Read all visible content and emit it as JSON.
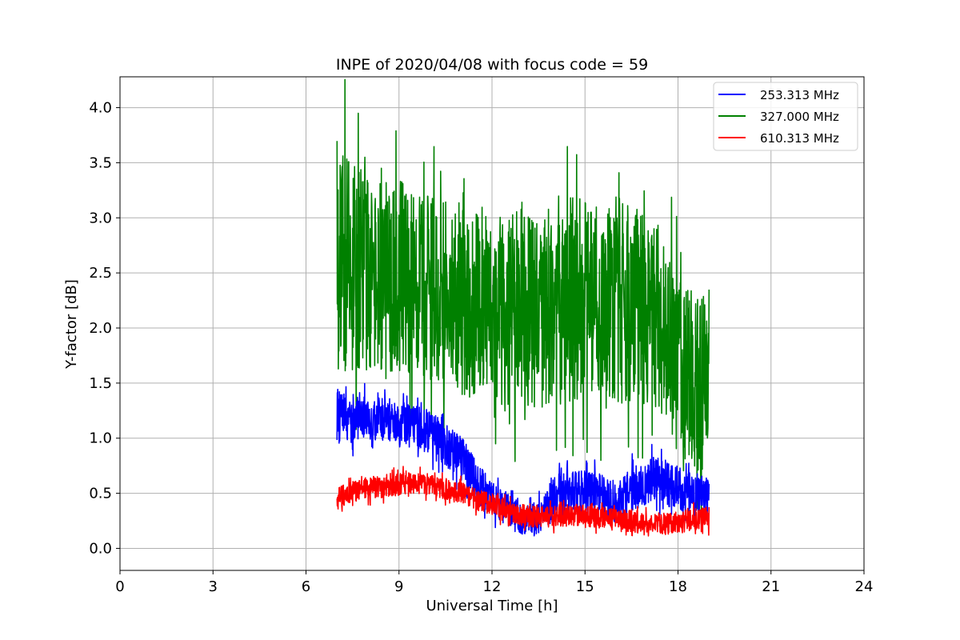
{
  "chart_data": {
    "type": "line",
    "title": "INPE of 2020/04/08 with focus code = 59",
    "xlabel": "Universal Time [h]",
    "ylabel": "Y-factor [dB]",
    "xlim": [
      0,
      24
    ],
    "ylim": [
      -0.2,
      4.28
    ],
    "xticks": [
      0,
      3,
      6,
      9,
      12,
      15,
      18,
      21,
      24
    ],
    "xtick_labels": [
      "0",
      "3",
      "6",
      "9",
      "12",
      "15",
      "18",
      "21",
      "24"
    ],
    "yticks": [
      0.0,
      0.5,
      1.0,
      1.5,
      2.0,
      2.5,
      3.0,
      3.5,
      4.0
    ],
    "ytick_labels": [
      "0.0",
      "0.5",
      "1.0",
      "1.5",
      "2.0",
      "2.5",
      "3.0",
      "3.5",
      "4.0"
    ],
    "grid": true,
    "legend_position": "top-right",
    "series": [
      {
        "name": "253.313 MHz",
        "color": "#0000ff",
        "x": [
          7.0,
          7.5,
          8.0,
          8.5,
          9.0,
          9.5,
          10.0,
          10.5,
          11.0,
          11.5,
          12.0,
          12.5,
          13.0,
          13.5,
          14.0,
          14.5,
          15.0,
          15.5,
          16.0,
          16.5,
          17.0,
          17.5,
          18.0,
          18.5,
          19.0
        ],
        "mean": [
          1.2,
          1.18,
          1.17,
          1.17,
          1.15,
          1.1,
          1.05,
          0.95,
          0.8,
          0.6,
          0.45,
          0.35,
          0.25,
          0.28,
          0.45,
          0.5,
          0.52,
          0.48,
          0.4,
          0.55,
          0.6,
          0.62,
          0.55,
          0.5,
          0.5
        ],
        "spread": [
          0.25,
          0.22,
          0.2,
          0.2,
          0.2,
          0.2,
          0.2,
          0.2,
          0.22,
          0.2,
          0.15,
          0.15,
          0.15,
          0.15,
          0.2,
          0.2,
          0.2,
          0.2,
          0.18,
          0.2,
          0.22,
          0.22,
          0.2,
          0.18,
          0.15
        ]
      },
      {
        "name": "327.000 MHz",
        "color": "#008000",
        "x": [
          7.0,
          7.5,
          8.0,
          8.5,
          9.0,
          9.5,
          10.0,
          10.5,
          11.0,
          11.5,
          12.0,
          12.5,
          13.0,
          13.5,
          14.0,
          14.5,
          15.0,
          15.5,
          16.0,
          16.5,
          17.0,
          17.5,
          18.0,
          18.5,
          19.0
        ],
        "mean": [
          2.7,
          2.55,
          2.5,
          2.45,
          2.45,
          2.4,
          2.35,
          2.3,
          2.25,
          2.2,
          2.15,
          2.2,
          2.2,
          2.15,
          2.2,
          2.25,
          2.3,
          2.3,
          2.25,
          2.2,
          2.15,
          2.1,
          1.6,
          1.5,
          1.55
        ],
        "spread": [
          1.1,
          0.95,
          0.9,
          0.9,
          0.9,
          0.85,
          0.85,
          0.85,
          0.85,
          0.85,
          0.85,
          0.9,
          0.9,
          0.9,
          0.9,
          0.95,
          0.95,
          0.95,
          0.95,
          0.9,
          0.9,
          0.9,
          0.85,
          0.85,
          0.8
        ]
      },
      {
        "name": "610.313 MHz",
        "color": "#ff0000",
        "x": [
          7.0,
          7.5,
          8.0,
          8.5,
          9.0,
          9.5,
          10.0,
          10.5,
          11.0,
          11.5,
          12.0,
          12.5,
          13.0,
          13.5,
          14.0,
          14.5,
          15.0,
          15.5,
          16.0,
          16.5,
          17.0,
          17.5,
          18.0,
          18.5,
          19.0
        ],
        "mean": [
          0.45,
          0.52,
          0.55,
          0.56,
          0.58,
          0.6,
          0.58,
          0.54,
          0.5,
          0.45,
          0.4,
          0.35,
          0.3,
          0.28,
          0.3,
          0.3,
          0.3,
          0.28,
          0.25,
          0.25,
          0.22,
          0.22,
          0.24,
          0.26,
          0.28
        ],
        "spread": [
          0.1,
          0.1,
          0.1,
          0.1,
          0.1,
          0.1,
          0.1,
          0.1,
          0.1,
          0.1,
          0.1,
          0.1,
          0.1,
          0.1,
          0.1,
          0.1,
          0.1,
          0.1,
          0.1,
          0.1,
          0.1,
          0.1,
          0.1,
          0.1,
          0.1
        ]
      }
    ]
  }
}
